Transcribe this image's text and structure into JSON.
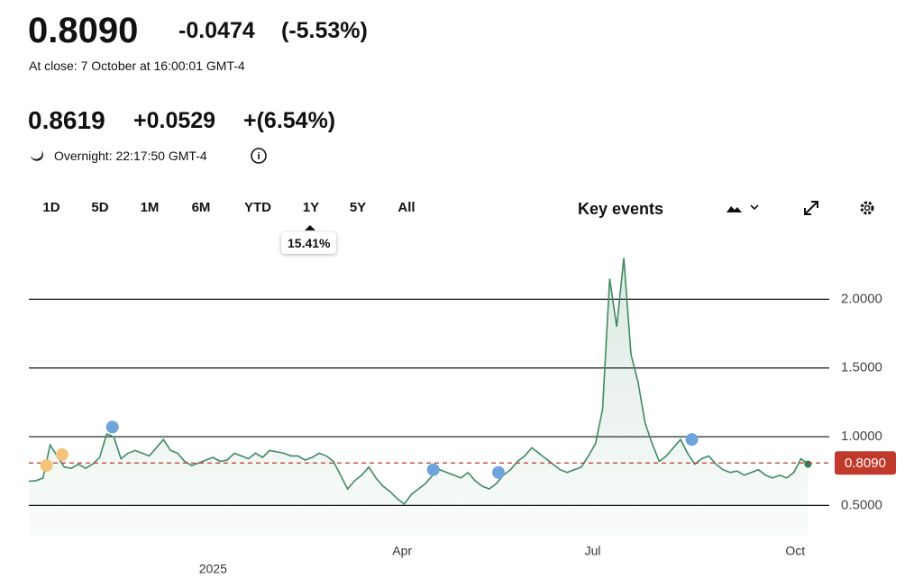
{
  "header": {
    "price": "0.8090",
    "change": "-0.0474",
    "change_pct": "(-5.53%)",
    "close_note": "At close: 7 October at 16:00:01 GMT-4",
    "after_price": "0.8619",
    "after_change": "+0.0529",
    "after_change_pct": "+(6.54%)",
    "after_note": "Overnight: 22:17:50 GMT-4"
  },
  "toolbar": {
    "ranges": [
      "1D",
      "5D",
      "1M",
      "6M",
      "YTD",
      "1Y",
      "5Y",
      "All"
    ],
    "key_events": "Key events",
    "tooltip": "15.41%"
  },
  "chart_data": {
    "type": "line",
    "color": "#3f8a63",
    "x": [
      0,
      1,
      2,
      3,
      4,
      5,
      6,
      7,
      8,
      9,
      10,
      11,
      12,
      13,
      14,
      15,
      16,
      17,
      18,
      19,
      20,
      21,
      22,
      23,
      24,
      25,
      26,
      27,
      28,
      29,
      30,
      31,
      32,
      33,
      34,
      35,
      36,
      37,
      38,
      39,
      40,
      41,
      42,
      43,
      44,
      45,
      46,
      47,
      48,
      49,
      50,
      51,
      52,
      53,
      54,
      55,
      56,
      57,
      58,
      59,
      60,
      61,
      62,
      63,
      64,
      65,
      66,
      67,
      68,
      69,
      70,
      71,
      72,
      73,
      74,
      75,
      76,
      77,
      78,
      79,
      80,
      81,
      82,
      83,
      84,
      85,
      86,
      87,
      88,
      89,
      90,
      91,
      92,
      93,
      94,
      95,
      96,
      97,
      98,
      99,
      100,
      101,
      102,
      103,
      104,
      105,
      106,
      107,
      108,
      109,
      110
    ],
    "values": [
      0.676,
      0.68,
      0.7,
      0.94,
      0.86,
      0.78,
      0.77,
      0.8,
      0.77,
      0.8,
      0.85,
      1.02,
      1.0,
      0.84,
      0.88,
      0.9,
      0.88,
      0.86,
      0.92,
      0.98,
      0.9,
      0.88,
      0.82,
      0.79,
      0.81,
      0.83,
      0.85,
      0.82,
      0.83,
      0.88,
      0.86,
      0.84,
      0.88,
      0.85,
      0.9,
      0.89,
      0.88,
      0.86,
      0.86,
      0.83,
      0.85,
      0.88,
      0.86,
      0.82,
      0.72,
      0.62,
      0.68,
      0.72,
      0.78,
      0.7,
      0.64,
      0.6,
      0.55,
      0.51,
      0.58,
      0.62,
      0.66,
      0.72,
      0.76,
      0.74,
      0.72,
      0.7,
      0.74,
      0.68,
      0.64,
      0.62,
      0.66,
      0.72,
      0.76,
      0.82,
      0.86,
      0.92,
      0.88,
      0.84,
      0.8,
      0.76,
      0.74,
      0.76,
      0.78,
      0.86,
      0.95,
      1.2,
      2.15,
      1.8,
      2.3,
      1.6,
      1.4,
      1.1,
      0.95,
      0.82,
      0.86,
      0.92,
      0.98,
      0.88,
      0.8,
      0.84,
      0.86,
      0.8,
      0.76,
      0.74,
      0.75,
      0.72,
      0.74,
      0.76,
      0.72,
      0.7,
      0.72,
      0.7,
      0.74,
      0.84,
      0.8
    ],
    "xlim": [
      0,
      113
    ],
    "xticks": [
      {
        "value": 26,
        "label": "2025"
      },
      {
        "value": 52.7,
        "label": "Apr"
      },
      {
        "value": 79.6,
        "label": "Jul"
      },
      {
        "value": 108.2,
        "label": "Oct"
      }
    ],
    "ylim": [
      0.28,
      2.343
    ],
    "yticks": [
      {
        "value": 0.5,
        "label": "0.5000"
      },
      {
        "value": 1,
        "label": "1.0000"
      },
      {
        "value": 1.5,
        "label": "1.5000"
      },
      {
        "value": 2,
        "label": "2.0000"
      }
    ],
    "grid": true,
    "reference_line": {
      "value": 0.809,
      "label": "0.8090",
      "color": "#c0392b"
    },
    "events": [
      {
        "x": 2.5,
        "y": 0.79,
        "color": "#f3c47a"
      },
      {
        "x": 4.7,
        "y": 0.87,
        "color": "#f3c47a"
      },
      {
        "x": 11.8,
        "y": 1.07,
        "color": "#6fa3dc"
      },
      {
        "x": 57.1,
        "y": 0.76,
        "color": "#6fa3dc"
      },
      {
        "x": 66.3,
        "y": 0.74,
        "color": "#6fa3dc"
      },
      {
        "x": 93.6,
        "y": 0.98,
        "color": "#6fa3dc"
      }
    ]
  }
}
